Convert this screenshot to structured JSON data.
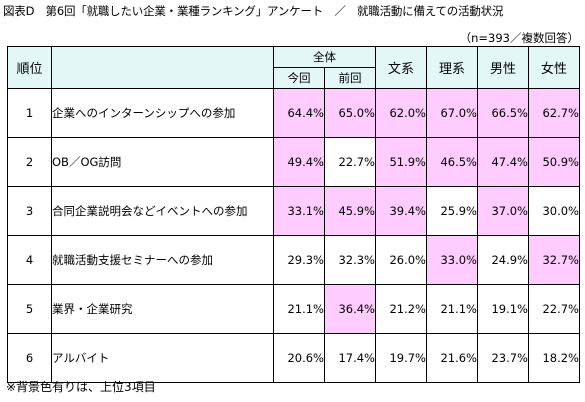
{
  "title": "図表D　第6回「就職したい企業・業種ランキング」アンケート　／　就職活動に備えての活動状況",
  "note_top": "（n=393／複数回答）",
  "note_bottom": "※背景色有りは、上位3項目",
  "headers": {
    "rank": "順位",
    "overall": "全体",
    "current": "今回",
    "previous": "前回",
    "humanities": "文系",
    "sciences": "理系",
    "male": "男性",
    "female": "女性"
  },
  "rows": [
    {
      "rank": "1",
      "label": "企業へのインターンシップへの参加",
      "current": "64.4%",
      "previous": "65.0%",
      "humanities": "62.0%",
      "sciences": "67.0%",
      "male": "66.5%",
      "female": "62.7%",
      "hl": {
        "current": true,
        "previous": true,
        "humanities": true,
        "sciences": true,
        "male": true,
        "female": true
      }
    },
    {
      "rank": "2",
      "label": "OB／OG訪問",
      "current": "49.4%",
      "previous": "22.7%",
      "humanities": "51.9%",
      "sciences": "46.5%",
      "male": "47.4%",
      "female": "50.9%",
      "hl": {
        "current": true,
        "previous": false,
        "humanities": true,
        "sciences": true,
        "male": true,
        "female": true
      }
    },
    {
      "rank": "3",
      "label": "合同企業説明会などイベントへの参加",
      "current": "33.1%",
      "previous": "45.9%",
      "humanities": "39.4%",
      "sciences": "25.9%",
      "male": "37.0%",
      "female": "30.0%",
      "hl": {
        "current": true,
        "previous": true,
        "humanities": true,
        "sciences": false,
        "male": true,
        "female": false
      }
    },
    {
      "rank": "4",
      "label": "就職活動支援セミナーへの参加",
      "current": "29.3%",
      "previous": "32.3%",
      "humanities": "26.0%",
      "sciences": "33.0%",
      "male": "24.9%",
      "female": "32.7%",
      "hl": {
        "current": false,
        "previous": false,
        "humanities": false,
        "sciences": true,
        "male": false,
        "female": true
      }
    },
    {
      "rank": "5",
      "label": "業界・企業研究",
      "current": "21.1%",
      "previous": "36.4%",
      "humanities": "21.2%",
      "sciences": "21.1%",
      "male": "19.1%",
      "female": "22.7%",
      "hl": {
        "current": false,
        "previous": true,
        "humanities": false,
        "sciences": false,
        "male": false,
        "female": false
      }
    },
    {
      "rank": "6",
      "label": "アルバイト",
      "current": "20.6%",
      "previous": "17.4%",
      "humanities": "19.7%",
      "sciences": "21.6%",
      "male": "23.7%",
      "female": "18.2%",
      "hl": {
        "current": false,
        "previous": false,
        "humanities": false,
        "sciences": false,
        "male": false,
        "female": false
      }
    }
  ],
  "colors": {
    "highlight": "#ffccff",
    "header_bg": "#e3f7f7",
    "border": "#000000"
  }
}
